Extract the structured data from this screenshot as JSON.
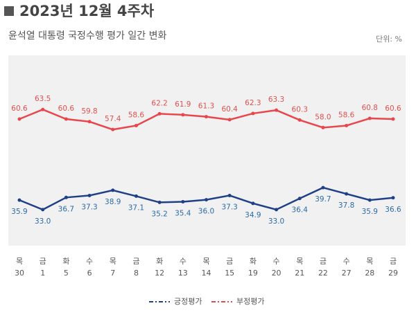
{
  "chart_data": {
    "type": "line",
    "title": "2023년 12월 4주차",
    "subtitle": "윤석열 대통령 국정수행 평가 일간 변화",
    "unit_label": "단위: %",
    "weekdays": [
      "목",
      "금",
      "화",
      "수",
      "목",
      "금",
      "화",
      "수",
      "목",
      "금",
      "화",
      "수",
      "목",
      "금",
      "수",
      "목",
      "금"
    ],
    "categories": [
      "30",
      "1",
      "5",
      "6",
      "7",
      "8",
      "12",
      "13",
      "14",
      "15",
      "19",
      "20",
      "21",
      "22",
      "27",
      "28",
      "29"
    ],
    "ylim": [
      22,
      80
    ],
    "series": [
      {
        "name": "긍정평가",
        "color": "#1f3f87",
        "label_color": "#2b6aa6",
        "label_position": "below",
        "values": [
          35.9,
          33.0,
          36.7,
          37.3,
          38.9,
          37.1,
          35.2,
          35.4,
          36.0,
          37.3,
          34.9,
          33.0,
          36.4,
          39.7,
          37.8,
          35.9,
          36.6
        ],
        "value_labels": [
          "35.9",
          "33.0",
          "36.7",
          "37.3",
          "38.9",
          "37.1",
          "35.2",
          "35.4",
          "36.0",
          "37.3",
          "34.9",
          "33.0",
          "36.4",
          "39.7",
          "37.8",
          "35.9",
          "36.6"
        ]
      },
      {
        "name": "부정평가",
        "color": "#e8464c",
        "label_color": "#e0504f",
        "label_position": "above",
        "values": [
          60.6,
          63.5,
          60.6,
          59.8,
          57.4,
          58.6,
          62.2,
          61.9,
          61.3,
          60.4,
          62.3,
          63.3,
          60.3,
          58.0,
          58.6,
          60.8,
          60.6
        ],
        "value_labels": [
          "60.6",
          "63.5",
          "60.6",
          "59.8",
          "57.4",
          "58.6",
          "62.2",
          "61.9",
          "61.3",
          "60.4",
          "62.3",
          "63.3",
          "60.3",
          "58.0",
          "58.6",
          "60.8",
          "60.6"
        ]
      }
    ]
  }
}
